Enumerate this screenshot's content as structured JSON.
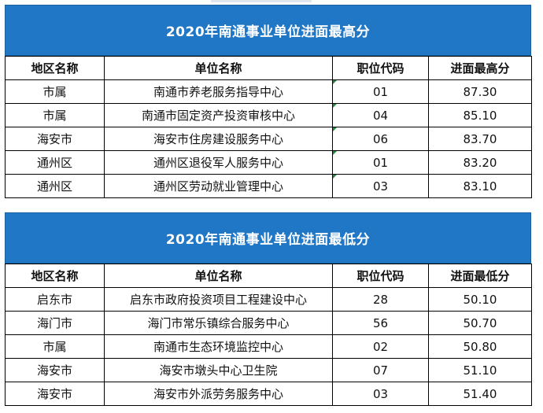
{
  "table_high": {
    "title": "2020年南通事业单位进面最高分",
    "headers": [
      "地区名称",
      "单位名称",
      "职位代码",
      "进面最高分"
    ],
    "rows": [
      [
        "市属",
        "南通市养老服务指导中心",
        "01",
        "87.30"
      ],
      [
        "市属",
        "南通市固定资产投资审核中心",
        "04",
        "85.10"
      ],
      [
        "海安市",
        "海安市住房建设服务中心",
        "06",
        "83.70"
      ],
      [
        "通州区",
        "通州区退役军人服务中心",
        "01",
        "83.20"
      ],
      [
        "通州区",
        "通州区劳动就业管理中心",
        "03",
        "83.10"
      ]
    ]
  },
  "table_low": {
    "title": "2020年南通事业单位进面最低分",
    "headers": [
      "地区名称",
      "单位名称",
      "职位代码",
      "进面最低分"
    ],
    "rows": [
      [
        "启东市",
        "启东市政府投资项目工程建设中心",
        "28",
        "50.10"
      ],
      [
        "海门市",
        "海门市常乐镇综合服务中心",
        "56",
        "50.70"
      ],
      [
        "市属",
        "南通市生态环境监控中心",
        "02",
        "50.80"
      ],
      [
        "海安市",
        "海安市墩头中心卫生院",
        "07",
        "51.10"
      ],
      [
        "海安市",
        "海安市外派劳务服务中心",
        "03",
        "51.40"
      ]
    ]
  },
  "colors": {
    "title_bar": "#1f77c6",
    "title_text": "#ffffff",
    "marker": "#1e8a3c"
  }
}
